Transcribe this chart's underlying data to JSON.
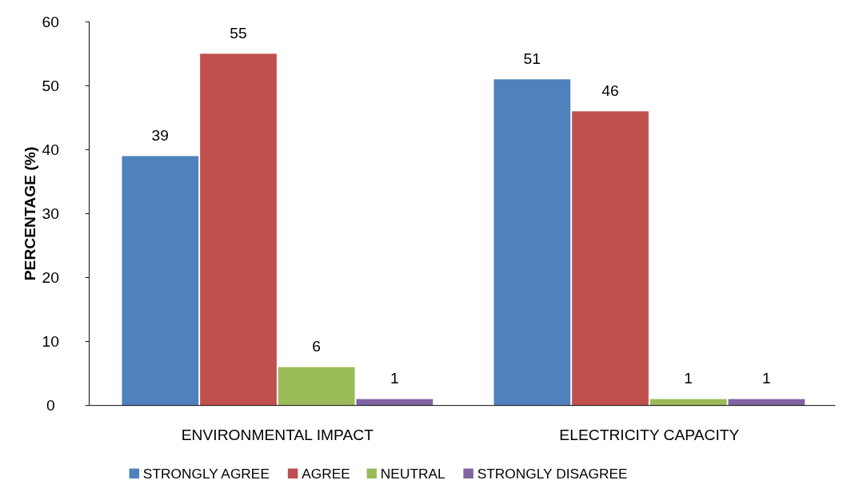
{
  "chart_data": {
    "type": "bar",
    "ylabel": "PERCENTAGE (%)",
    "categories": [
      "ENVIRONMENTAL IMPACT",
      "ELECTRICITY CAPACITY"
    ],
    "series": [
      {
        "name": "STRONGLY AGREE",
        "color": "#4f81bd",
        "values": [
          39,
          51
        ]
      },
      {
        "name": "AGREE",
        "color": "#c0504d",
        "values": [
          55,
          46
        ]
      },
      {
        "name": "NEUTRAL",
        "color": "#9bbb59",
        "values": [
          6,
          1
        ]
      },
      {
        "name": "STRONGLY DISAGREE",
        "color": "#8064a2",
        "values": [
          1,
          1
        ]
      }
    ],
    "ylim": [
      0,
      60
    ],
    "yticks": [
      0,
      10,
      20,
      30,
      40,
      50,
      60
    ],
    "data_labels": true,
    "legend": "bottom",
    "grid": false
  }
}
